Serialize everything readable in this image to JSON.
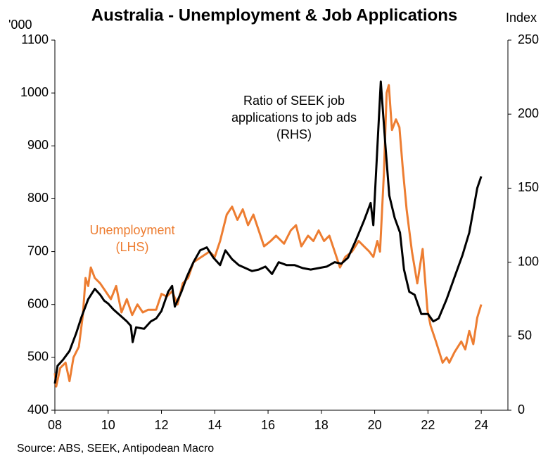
{
  "chart_data": {
    "type": "line",
    "title": "Australia - Unemployment & Job Applications",
    "y_label": "'000",
    "y2_label": "Index",
    "source": "Source: ABS, SEEK, Antipodean Macro",
    "annotations": [
      {
        "lines": [
          "Ratio of SEEK job",
          "applications to job ads",
          "(RHS)"
        ],
        "color": "#000000"
      },
      {
        "lines": [
          "Unemployment",
          "(LHS)"
        ],
        "color": "#ED7D31"
      }
    ],
    "xlim": [
      2008,
      2025
    ],
    "xticks": [
      {
        "value": 2008,
        "label": "08"
      },
      {
        "value": 2010,
        "label": "10"
      },
      {
        "value": 2012,
        "label": "12"
      },
      {
        "value": 2014,
        "label": "14"
      },
      {
        "value": 2016,
        "label": "16"
      },
      {
        "value": 2018,
        "label": "18"
      },
      {
        "value": 2020,
        "label": "20"
      },
      {
        "value": 2022,
        "label": "22"
      },
      {
        "value": 2024,
        "label": "24"
      }
    ],
    "ylim": [
      400,
      1100
    ],
    "yticks": [
      400,
      500,
      600,
      700,
      800,
      900,
      1000,
      1100
    ],
    "y2lim": [
      0,
      250
    ],
    "y2ticks": [
      0,
      50,
      100,
      150,
      200,
      250
    ],
    "series": [
      {
        "name": "Unemployment",
        "color": "#ED7D31",
        "axis": "y",
        "x": [
          2008.0,
          2008.05,
          2008.2,
          2008.4,
          2008.55,
          2008.7,
          2008.9,
          2009.05,
          2009.15,
          2009.25,
          2009.35,
          2009.5,
          2009.7,
          2009.9,
          2010.1,
          2010.3,
          2010.5,
          2010.7,
          2010.9,
          2011.1,
          2011.3,
          2011.5,
          2011.8,
          2012.0,
          2012.2,
          2012.4,
          2012.6,
          2012.8,
          2013.0,
          2013.2,
          2013.5,
          2013.8,
          2014.0,
          2014.2,
          2014.45,
          2014.65,
          2014.85,
          2015.05,
          2015.25,
          2015.45,
          2015.65,
          2015.85,
          2016.1,
          2016.3,
          2016.6,
          2016.85,
          2017.05,
          2017.25,
          2017.5,
          2017.7,
          2017.9,
          2018.1,
          2018.3,
          2018.5,
          2018.7,
          2018.9,
          2019.15,
          2019.4,
          2019.6,
          2019.8,
          2019.95,
          2020.1,
          2020.2,
          2020.35,
          2020.45,
          2020.53,
          2020.65,
          2020.8,
          2020.93,
          2021.05,
          2021.2,
          2021.4,
          2021.6,
          2021.8,
          2021.98,
          2022.1,
          2022.3,
          2022.55,
          2022.7,
          2022.8,
          2023.0,
          2023.25,
          2023.4,
          2023.55,
          2023.7,
          2023.85,
          2024.0
        ],
        "values": [
          470,
          445,
          480,
          490,
          455,
          500,
          520,
          580,
          650,
          635,
          670,
          650,
          640,
          625,
          610,
          635,
          585,
          610,
          580,
          600,
          585,
          590,
          590,
          620,
          615,
          625,
          600,
          640,
          650,
          680,
          690,
          700,
          690,
          720,
          770,
          785,
          760,
          780,
          750,
          770,
          740,
          710,
          720,
          730,
          715,
          740,
          750,
          710,
          730,
          720,
          740,
          720,
          730,
          700,
          670,
          690,
          700,
          720,
          710,
          700,
          690,
          720,
          700,
          850,
          1000,
          1015,
          930,
          950,
          935,
          860,
          780,
          700,
          640,
          705,
          590,
          560,
          530,
          490,
          500,
          490,
          510,
          530,
          515,
          550,
          525,
          575,
          600
        ]
      },
      {
        "name": "Ratio of SEEK job applications to job ads",
        "color": "#000000",
        "axis": "y2",
        "x": [
          2008.0,
          2008.1,
          2008.3,
          2008.55,
          2008.8,
          2009.0,
          2009.25,
          2009.5,
          2009.7,
          2009.85,
          2010.0,
          2010.2,
          2010.45,
          2010.7,
          2010.85,
          2010.92,
          2011.05,
          2011.35,
          2011.6,
          2011.8,
          2012.0,
          2012.25,
          2012.4,
          2012.5,
          2012.75,
          2012.95,
          2013.2,
          2013.45,
          2013.7,
          2013.95,
          2014.2,
          2014.4,
          2014.65,
          2014.9,
          2015.15,
          2015.4,
          2015.65,
          2015.9,
          2016.15,
          2016.4,
          2016.7,
          2017.0,
          2017.3,
          2017.6,
          2017.9,
          2018.2,
          2018.5,
          2018.75,
          2019.0,
          2019.3,
          2019.6,
          2019.85,
          2019.95,
          2020.23,
          2020.4,
          2020.55,
          2020.75,
          2020.95,
          2021.1,
          2021.3,
          2021.5,
          2021.75,
          2022.0,
          2022.2,
          2022.4,
          2022.7,
          2023.0,
          2023.3,
          2023.55,
          2023.7,
          2023.85,
          2024.0
        ],
        "values": [
          18,
          30,
          34,
          40,
          52,
          63,
          75,
          82,
          78,
          74,
          72,
          68,
          64,
          60,
          57,
          46,
          56,
          55,
          60,
          62,
          67,
          80,
          84,
          70,
          80,
          90,
          100,
          108,
          110,
          103,
          98,
          108,
          102,
          98,
          96,
          94,
          95,
          97,
          92,
          100,
          98,
          98,
          96,
          95,
          96,
          97,
          100,
          99,
          103,
          115,
          128,
          140,
          125,
          222,
          180,
          145,
          130,
          120,
          95,
          80,
          78,
          65,
          65,
          60,
          62,
          75,
          90,
          105,
          120,
          135,
          150,
          158
        ]
      }
    ]
  }
}
